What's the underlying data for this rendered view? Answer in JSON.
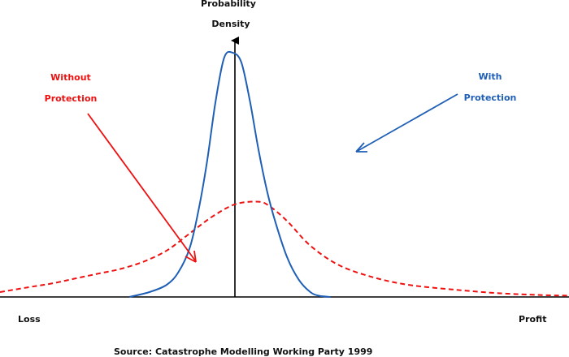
{
  "chart_data": {
    "type": "line",
    "ylabel_line1": "Probability",
    "ylabel_line2": "Density",
    "x_left_label": "Loss",
    "x_right_label": "Profit",
    "source": "Source: Catastrophe Modelling Working Party 1999",
    "colors": {
      "without": "#ee1111",
      "with": "#1f5fb5",
      "axis": "#000000"
    },
    "series": [
      {
        "key": "without",
        "label_line1": "Without",
        "label_line2": "Protection",
        "style": "dashed",
        "x": [
          -2.9,
          -2.4,
          -2.0,
          -1.6,
          -1.2,
          -0.8,
          -0.4,
          0.0,
          0.4,
          0.8,
          1.2,
          1.6,
          1.8,
          2.1,
          2.5,
          3.0,
          3.6,
          4.2,
          5.0,
          5.8,
          6.5,
          7.0
        ],
        "y": [
          0.02,
          0.04,
          0.055,
          0.075,
          0.095,
          0.115,
          0.145,
          0.19,
          0.26,
          0.33,
          0.38,
          0.39,
          0.37,
          0.31,
          0.21,
          0.13,
          0.08,
          0.05,
          0.03,
          0.015,
          0.008,
          0.005
        ]
      },
      {
        "key": "with",
        "label_line1": "With",
        "label_line2": "Protection",
        "style": "solid",
        "x": [
          -0.65,
          -0.3,
          0.0,
          0.2,
          0.4,
          0.55,
          0.7,
          0.85,
          1.0,
          1.15,
          1.3,
          1.45,
          1.6,
          1.75,
          1.9,
          2.1,
          2.3,
          2.5,
          2.65,
          2.85
        ],
        "y": [
          0.0,
          0.02,
          0.05,
          0.1,
          0.2,
          0.35,
          0.55,
          0.8,
          0.98,
          1.0,
          0.96,
          0.8,
          0.6,
          0.43,
          0.3,
          0.16,
          0.07,
          0.02,
          0.005,
          0.0
        ]
      }
    ],
    "xlim": [
      -2.9,
      7.0
    ],
    "ylim": [
      0,
      1.05
    ]
  }
}
